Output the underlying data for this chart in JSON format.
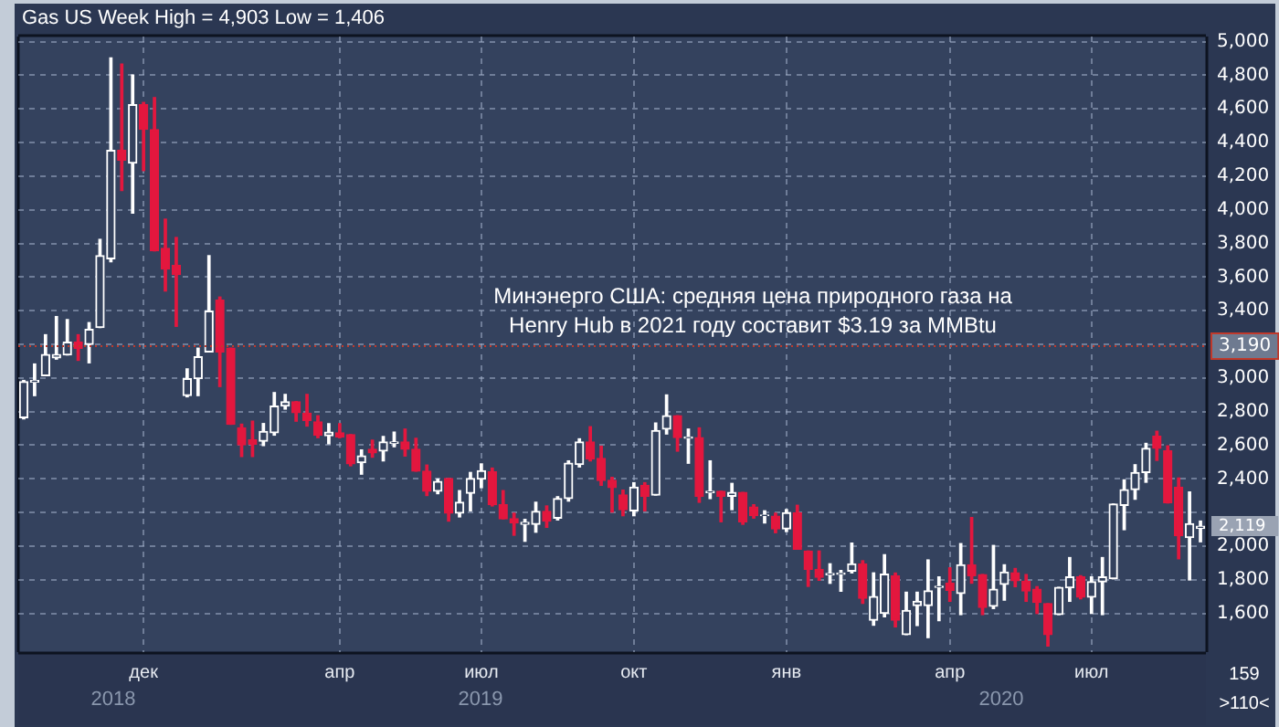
{
  "chart_data": {
    "type": "candlestick",
    "title": "Gas US Week High = 4,903 Low = 1,406",
    "categories": [
      null,
      null,
      null,
      null,
      null,
      null,
      null,
      null,
      null,
      null,
      null,
      "дек",
      null,
      null,
      null,
      null,
      null,
      null,
      null,
      null,
      null,
      null,
      null,
      null,
      null,
      null,
      null,
      null,
      null,
      "апр",
      null,
      null,
      null,
      null,
      null,
      null,
      null,
      null,
      null,
      null,
      null,
      null,
      "июл",
      null,
      null,
      null,
      null,
      null,
      null,
      null,
      null,
      null,
      null,
      null,
      null,
      null,
      "окт",
      null,
      null,
      null,
      null,
      null,
      null,
      null,
      null,
      null,
      null,
      null,
      null,
      null,
      "янв",
      null,
      null,
      null,
      null,
      null,
      null,
      null,
      null,
      null,
      null,
      null,
      null,
      null,
      null,
      "апр",
      null,
      null,
      null,
      null,
      null,
      null,
      null,
      null,
      null,
      null,
      null,
      null,
      "июл",
      null,
      null,
      null,
      null,
      null,
      null,
      null,
      null,
      null,
      null
    ],
    "ohlc": [
      [
        2764,
        2985,
        2757,
        2978
      ],
      [
        2975,
        3083,
        2895,
        2985
      ],
      [
        3014,
        3257,
        3014,
        3140
      ],
      [
        3120,
        3365,
        3112,
        3140
      ],
      [
        3137,
        3347,
        3137,
        3213
      ],
      [
        3213,
        3257,
        3105,
        3177
      ],
      [
        3199,
        3329,
        3090,
        3289
      ],
      [
        3300,
        3824,
        3300,
        3727
      ],
      [
        3709,
        4903,
        3691,
        4353
      ],
      [
        4353,
        4866,
        4114,
        4295
      ],
      [
        4277,
        4801,
        3980,
        4624
      ],
      [
        4624,
        4638,
        4233,
        4479
      ],
      [
        4476,
        4667,
        3756,
        3756
      ],
      [
        3770,
        3944,
        3517,
        3647
      ],
      [
        3669,
        3835,
        3307,
        3615
      ],
      [
        2895,
        3054,
        2888,
        2996
      ],
      [
        2996,
        3177,
        2895,
        3126
      ],
      [
        3155,
        3727,
        3155,
        3398
      ],
      [
        3463,
        3481,
        2949,
        3155
      ],
      [
        3177,
        3177,
        2725,
        2725
      ],
      [
        2703,
        2725,
        2533,
        2602
      ],
      [
        2631,
        2743,
        2533,
        2606
      ],
      [
        2624,
        2729,
        2598,
        2682
      ],
      [
        2674,
        2913,
        2660,
        2833
      ],
      [
        2833,
        2902,
        2815,
        2859
      ],
      [
        2859,
        2859,
        2743,
        2794
      ],
      [
        2790,
        2902,
        2714,
        2747
      ],
      [
        2739,
        2775,
        2645,
        2659
      ],
      [
        2656,
        2728,
        2609,
        2678
      ],
      [
        2674,
        2728,
        2645,
        2649
      ],
      [
        2663,
        2663,
        2478,
        2489
      ],
      [
        2496,
        2572,
        2428,
        2536
      ],
      [
        2576,
        2630,
        2529,
        2554
      ],
      [
        2565,
        2652,
        2507,
        2620
      ],
      [
        2612,
        2678,
        2591,
        2620
      ],
      [
        2620,
        2696,
        2536,
        2576
      ],
      [
        2576,
        2641,
        2446,
        2446
      ],
      [
        2446,
        2482,
        2301,
        2326
      ],
      [
        2326,
        2399,
        2312,
        2384
      ],
      [
        2402,
        2402,
        2149,
        2196
      ],
      [
        2196,
        2330,
        2174,
        2261
      ],
      [
        2315,
        2438,
        2210,
        2402
      ],
      [
        2399,
        2489,
        2348,
        2449
      ],
      [
        2442,
        2464,
        2239,
        2246
      ],
      [
        2246,
        2330,
        2163,
        2163
      ],
      [
        2163,
        2196,
        2065,
        2138
      ],
      [
        2130,
        2159,
        2029,
        2141
      ],
      [
        2130,
        2261,
        2083,
        2207
      ],
      [
        2207,
        2239,
        2112,
        2149
      ],
      [
        2167,
        2294,
        2156,
        2283
      ],
      [
        2283,
        2507,
        2268,
        2493
      ],
      [
        2486,
        2638,
        2471,
        2620
      ],
      [
        2620,
        2710,
        2507,
        2518
      ],
      [
        2522,
        2594,
        2362,
        2391
      ],
      [
        2391,
        2409,
        2203,
        2348
      ],
      [
        2304,
        2333,
        2181,
        2217
      ],
      [
        2210,
        2377,
        2181,
        2351
      ],
      [
        2362,
        2377,
        2210,
        2297
      ],
      [
        2304,
        2732,
        2304,
        2688
      ],
      [
        2696,
        2899,
        2667,
        2775
      ],
      [
        2775,
        2775,
        2565,
        2645
      ],
      [
        2641,
        2696,
        2493,
        2649
      ],
      [
        2645,
        2703,
        2261,
        2297
      ],
      [
        2319,
        2507,
        2283,
        2326
      ],
      [
        2326,
        2326,
        2145,
        2297
      ],
      [
        2297,
        2373,
        2217,
        2319
      ],
      [
        2319,
        2319,
        2130,
        2145
      ],
      [
        2232,
        2246,
        2167,
        2181
      ],
      [
        2181,
        2210,
        2138,
        2185
      ],
      [
        2178,
        2196,
        2080,
        2102
      ],
      [
        2102,
        2217,
        2087,
        2199
      ],
      [
        2199,
        2243,
        1982,
        1982
      ],
      [
        1971,
        1971,
        1761,
        1862
      ],
      [
        1862,
        1971,
        1797,
        1815
      ],
      [
        1830,
        1895,
        1779,
        1837
      ],
      [
        1833,
        1855,
        1732,
        1840
      ],
      [
        1852,
        2018,
        1841,
        1895
      ],
      [
        1895,
        1913,
        1660,
        1690
      ],
      [
        1560,
        1841,
        1530,
        1700
      ],
      [
        1600,
        1949,
        1580,
        1833
      ],
      [
        1823,
        1840,
        1520,
        1560
      ],
      [
        1474,
        1726,
        1474,
        1618
      ],
      [
        1647,
        1726,
        1528,
        1672
      ],
      [
        1647,
        1918,
        1456,
        1734
      ],
      [
        1755,
        1817,
        1557,
        1762
      ],
      [
        1780,
        1871,
        1672,
        1737
      ],
      [
        1719,
        2015,
        1593,
        1889
      ],
      [
        1889,
        2170,
        1780,
        1824
      ],
      [
        1831,
        1831,
        1593,
        1636
      ],
      [
        1643,
        2004,
        1629,
        1744
      ],
      [
        1773,
        1889,
        1679,
        1845
      ],
      [
        1842,
        1867,
        1759,
        1795
      ],
      [
        1791,
        1831,
        1672,
        1734
      ],
      [
        1744,
        1759,
        1600,
        1665
      ],
      [
        1658,
        1658,
        1406,
        1474
      ],
      [
        1593,
        1755,
        1593,
        1755
      ],
      [
        1752,
        1932,
        1672,
        1817
      ],
      [
        1817,
        1824,
        1687,
        1697
      ],
      [
        1697,
        1817,
        1600,
        1788
      ],
      [
        1788,
        1932,
        1593,
        1817
      ],
      [
        1806,
        2250,
        1806,
        2250
      ],
      [
        2243,
        2394,
        2098,
        2336
      ],
      [
        2336,
        2484,
        2279,
        2438
      ],
      [
        2438,
        2611,
        2380,
        2582
      ],
      [
        2654,
        2683,
        2510,
        2582
      ],
      [
        2567,
        2596,
        2257,
        2257
      ],
      [
        2351,
        2405,
        1925,
        2062
      ],
      [
        2051,
        2322,
        1799,
        2134
      ],
      [
        2105,
        2149,
        2026,
        2119
      ]
    ],
    "colors": [
      "#ffffff",
      "#ffffff",
      "#ffffff",
      "#ffffff",
      "#ffffff",
      "#e3173e",
      "#ffffff",
      "#ffffff",
      "#ffffff",
      "#e3173e",
      "#ffffff",
      "#e3173e",
      "#e3173e",
      "#e3173e",
      "#e3173e",
      "#ffffff",
      "#ffffff",
      "#ffffff",
      "#e3173e",
      "#e3173e",
      "#e3173e",
      "#e3173e",
      "#ffffff",
      "#ffffff",
      "#ffffff",
      "#e3173e",
      "#e3173e",
      "#e3173e",
      "#ffffff",
      "#e3173e",
      "#e3173e",
      "#ffffff",
      "#e3173e",
      "#ffffff",
      "#ffffff",
      "#e3173e",
      "#e3173e",
      "#e3173e",
      "#ffffff",
      "#e3173e",
      "#ffffff",
      "#ffffff",
      "#ffffff",
      "#e3173e",
      "#e3173e",
      "#e3173e",
      "#ffffff",
      "#ffffff",
      "#e3173e",
      "#ffffff",
      "#ffffff",
      "#ffffff",
      "#e3173e",
      "#e3173e",
      "#e3173e",
      "#e3173e",
      "#ffffff",
      "#e3173e",
      "#ffffff",
      "#ffffff",
      "#e3173e",
      "#ffffff",
      "#e3173e",
      "#ffffff",
      "#e3173e",
      "#ffffff",
      "#e3173e",
      "#e3173e",
      "#ffffff",
      "#e3173e",
      "#ffffff",
      "#e3173e",
      "#e3173e",
      "#e3173e",
      "#ffffff",
      "#ffffff",
      "#ffffff",
      "#e3173e",
      "#ffffff",
      "#ffffff",
      "#e3173e",
      "#ffffff",
      "#ffffff",
      "#ffffff",
      "#ffffff",
      "#e3173e",
      "#ffffff",
      "#e3173e",
      "#e3173e",
      "#ffffff",
      "#ffffff",
      "#e3173e",
      "#e3173e",
      "#e3173e",
      "#e3173e",
      "#ffffff",
      "#ffffff",
      "#e3173e",
      "#ffffff",
      "#ffffff",
      "#ffffff",
      "#ffffff",
      "#ffffff",
      "#ffffff",
      "#e3173e",
      "#e3173e",
      "#e3173e",
      "#ffffff",
      "#ffffff"
    ],
    "ylim": [
      1370,
      5030
    ],
    "yticks": [
      {
        "value": 1600,
        "label": "1,600"
      },
      {
        "value": 1800,
        "label": "1,800"
      },
      {
        "value": 2000,
        "label": "2,000"
      },
      {
        "value": 2200,
        "label": null
      },
      {
        "value": 2400,
        "label": "2,400"
      },
      {
        "value": 2600,
        "label": "2,600"
      },
      {
        "value": 2800,
        "label": "2,800"
      },
      {
        "value": 3000,
        "label": "3,000"
      },
      {
        "value": 3200,
        "label": null
      },
      {
        "value": 3400,
        "label": "3,400"
      },
      {
        "value": 3600,
        "label": "3,600"
      },
      {
        "value": 3800,
        "label": "3,800"
      },
      {
        "value": 4000,
        "label": "4,000"
      },
      {
        "value": 4200,
        "label": "4,200"
      },
      {
        "value": 4400,
        "label": "4,400"
      },
      {
        "value": 4600,
        "label": "4,600"
      },
      {
        "value": 4800,
        "label": "4,800"
      },
      {
        "value": 5000,
        "label": "5,000"
      }
    ],
    "ref_lines": [
      {
        "axis": "y",
        "value": 3190,
        "label": "3,190",
        "color": "#c0392b",
        "line_style": "dotted"
      }
    ],
    "annotations": [
      "Минэнерго США: средняя цена природного газа на Henry Hub в 2021 году составит $3.19 за MMBtu",
      {
        "text": "2,119",
        "y": 2119
      },
      "2018",
      "2019",
      "2020",
      "159",
      ">110<"
    ],
    "grid": true,
    "legend": false
  }
}
